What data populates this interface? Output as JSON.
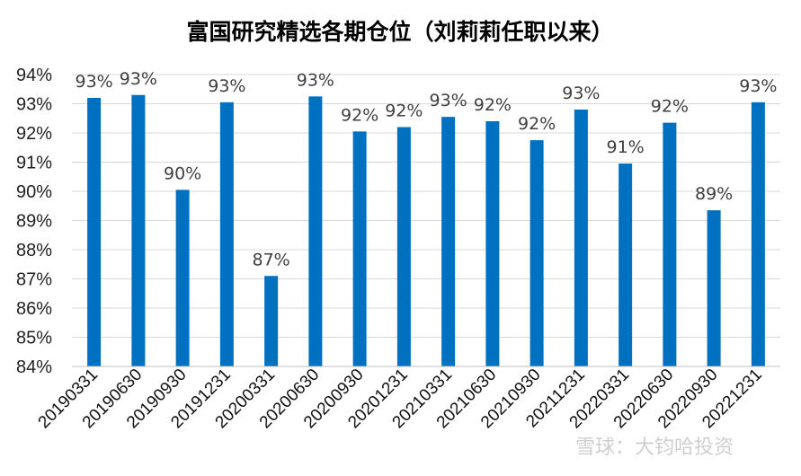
{
  "chart_data": {
    "type": "bar",
    "title": "富国研究精选各期仓位（刘莉莉任职以来）",
    "xlabel": "",
    "ylabel": "",
    "ylim": [
      84,
      94
    ],
    "yticks": [
      "84%",
      "85%",
      "86%",
      "87%",
      "88%",
      "89%",
      "90%",
      "91%",
      "92%",
      "93%",
      "94%"
    ],
    "categories": [
      "20190331",
      "20190630",
      "20190930",
      "20191231",
      "20200331",
      "20200630",
      "20200930",
      "20201231",
      "20210331",
      "20210630",
      "20210930",
      "20211231",
      "20220331",
      "20220630",
      "20220930",
      "20221231"
    ],
    "values": [
      93.2,
      93.3,
      90.05,
      93.05,
      87.1,
      93.25,
      92.05,
      92.2,
      92.55,
      92.4,
      91.75,
      92.8,
      90.95,
      92.35,
      89.35,
      93.05
    ],
    "data_labels": [
      "93%",
      "93%",
      "90%",
      "93%",
      "87%",
      "93%",
      "92%",
      "92%",
      "93%",
      "92%",
      "92%",
      "93%",
      "91%",
      "92%",
      "89%",
      "93%"
    ],
    "grid": true,
    "bar_color": "#0070C0"
  },
  "watermark": {
    "text": "雪球：大钧哈投资"
  }
}
